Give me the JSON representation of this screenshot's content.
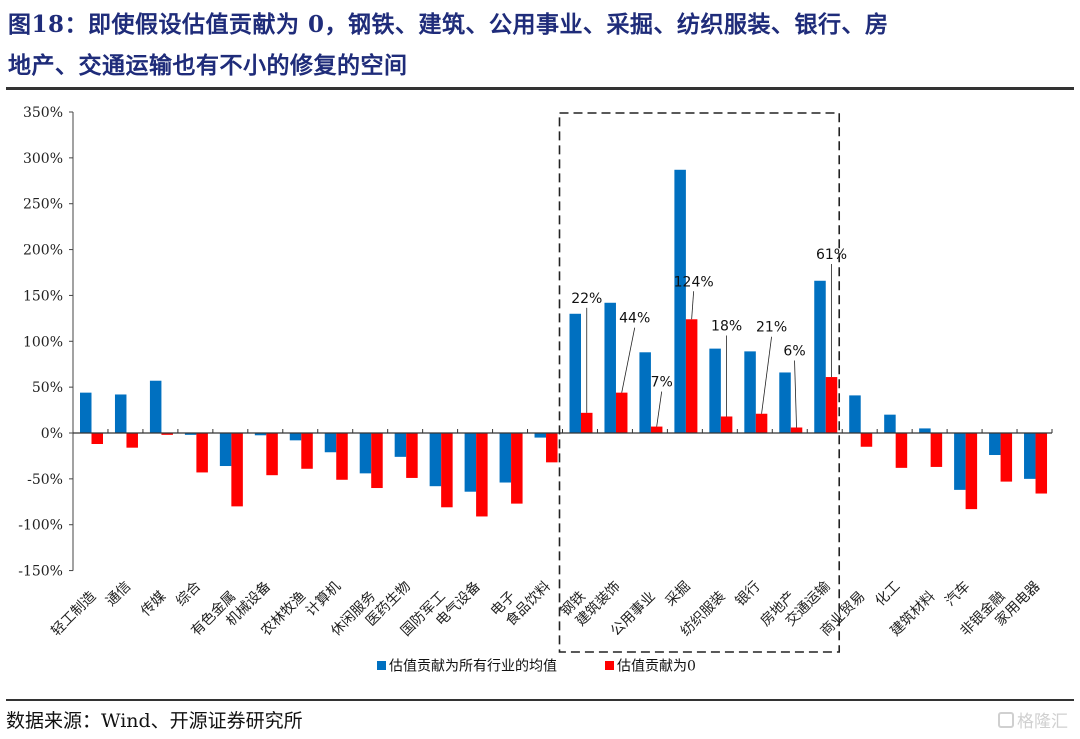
{
  "header": {
    "title_line1": "图18：即使假设估值贡献为 0，钢铁、建筑、公用事业、采掘、纺织服装、银行、房",
    "title_line2": "地产、交通运输也有不小的修复的空间"
  },
  "footer": {
    "source": "数据来源：Wind、开源证券研究所",
    "watermark": "格隆汇"
  },
  "colors": {
    "series_avg": "#0070c0",
    "series_zero": "#ff0000",
    "title": "#1f2c7a"
  },
  "chart_data": {
    "type": "bar",
    "title": "",
    "xlabel": "",
    "ylabel": "",
    "ylim": [
      -150,
      350
    ],
    "yticks": [
      -150,
      -100,
      -50,
      0,
      50,
      100,
      150,
      200,
      250,
      300,
      350
    ],
    "ytick_labels": [
      "-150%",
      "-100%",
      "-50%",
      "0%",
      "50%",
      "100%",
      "150%",
      "200%",
      "250%",
      "300%",
      "350%"
    ],
    "value_unit": "%",
    "grid": false,
    "legend_position": "bottom",
    "categories": [
      "轻工制造",
      "通信",
      "传媒",
      "综合",
      "有色金属",
      "机械设备",
      "农林牧渔",
      "计算机",
      "休闲服务",
      "医药生物",
      "国防军工",
      "电气设备",
      "电子",
      "食品饮料",
      "钢铁",
      "建筑装饰",
      "公用事业",
      "采掘",
      "纺织服装",
      "银行",
      "房地产",
      "交通运输",
      "商业贸易",
      "化工",
      "建筑材料",
      "汽车",
      "非银金融",
      "家用电器"
    ],
    "series": [
      {
        "name": "估值贡献为所有行业的均值",
        "color": "#0070c0",
        "values": [
          44,
          42,
          57,
          -2,
          -36,
          -2.5,
          -8,
          -21,
          -44,
          -26,
          -58,
          -64,
          -54,
          -5,
          130,
          142,
          88,
          287,
          92,
          89,
          66,
          166,
          41,
          20,
          5,
          -62,
          -24,
          -50
        ]
      },
      {
        "name": "估值贡献为0",
        "color": "#ff0000",
        "values": [
          -12,
          -16,
          -2,
          -43,
          -80,
          -46,
          -39,
          -51,
          -60,
          -49,
          -81,
          -91,
          -77,
          -32,
          22,
          44,
          7,
          124,
          18,
          21,
          6,
          61,
          -15,
          -38,
          -37,
          -83,
          -53,
          -66
        ]
      }
    ],
    "annotations": [
      {
        "category": "钢铁",
        "series": 1,
        "text": "22%"
      },
      {
        "category": "建筑装饰",
        "series": 1,
        "text": "44%"
      },
      {
        "category": "公用事业",
        "series": 1,
        "text": "7%"
      },
      {
        "category": "采掘",
        "series": 1,
        "text": "124%"
      },
      {
        "category": "纺织服装",
        "series": 1,
        "text": "18%"
      },
      {
        "category": "银行",
        "series": 1,
        "text": "21%"
      },
      {
        "category": "房地产",
        "series": 1,
        "text": "6%"
      },
      {
        "category": "交通运输",
        "series": 1,
        "text": "61%"
      }
    ],
    "highlight_box": {
      "from_category": "钢铁",
      "to_category": "交通运输",
      "style": "dashed"
    }
  }
}
